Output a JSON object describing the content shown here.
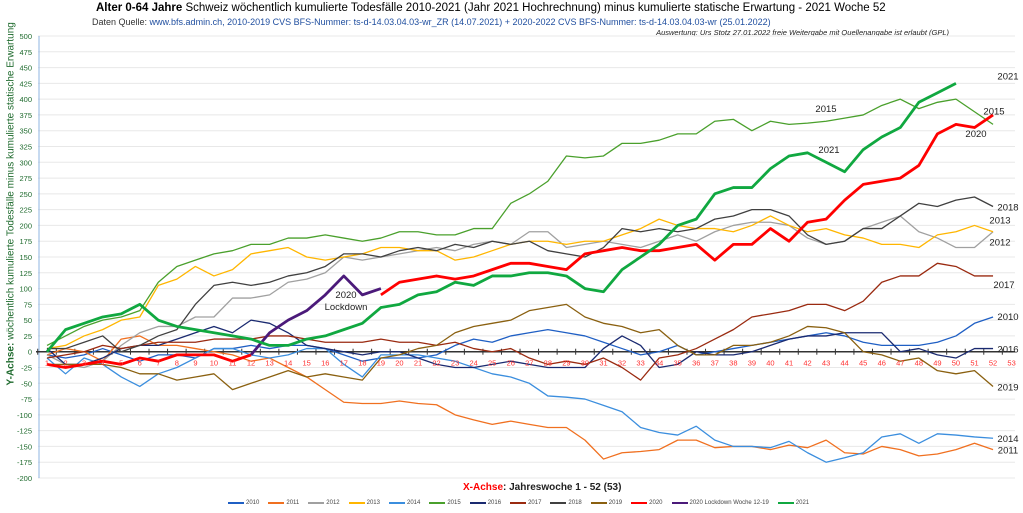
{
  "header": {
    "title_bold": "Alter 0-64 Jahre",
    "title_rest": " Schweiz wöchentlich kumulierte Todesfälle 2010-2021 (Jahr 2021 Hochrechnung) minus kumulierte statische Erwartung -  2021  Woche 52",
    "source_label": "Daten Quelle: ",
    "source_text": "www.bfs.admin.ch,  2010-2019 CVS BFS-Nummer: ts-d-14.03.04.03-wr_ZR (14.07.2021) + 2020-2022 CVS BFS-Nummer: ts-d-14.03.04.03-wr (25.01.2022)",
    "credit": "Auswertung: Urs Stotz 27.01.2022 freie Weitergabe mit Quellenangabe ist erlaubt (GPL)"
  },
  "chart_data": {
    "type": "line",
    "title": "Alter 0-64 Jahre Schweiz wöchentlich kumulierte Todesfälle 2010-2021 (Jahr 2021 Hochrechnung) minus kumulierte statische Erwartung -  2021  Woche 52",
    "xlabel_red": "X-Achse",
    "xlabel_rest": ": Jahreswoche  1 - 52 (53)",
    "ylabel_bold": "Y-Achse:",
    "ylabel_rest": " wöchentlich kumulierte Todesfälle minus kumulierte statische Erwartung",
    "ylim": [
      -200,
      500
    ],
    "yticks": [
      "500",
      "475",
      "450",
      "425",
      "400",
      "375",
      "350",
      "325",
      "300",
      "275",
      "250",
      "225",
      "200",
      "175",
      "150",
      "125",
      "100",
      "75",
      "50",
      "25",
      "0",
      "-25",
      "-50",
      "-75",
      "-100",
      "-125",
      "-150",
      "-175",
      "-200"
    ],
    "xticks": [
      "1",
      "2",
      "3",
      "4",
      "5",
      "6",
      "7",
      "8",
      "9",
      "10",
      "11",
      "12",
      "13",
      "14",
      "15",
      "16",
      "17",
      "18",
      "19",
      "20",
      "21",
      "22",
      "23",
      "24",
      "25",
      "26",
      "27",
      "28",
      "29",
      "30",
      "31",
      "32",
      "33",
      "34",
      "35",
      "36",
      "37",
      "38",
      "39",
      "40",
      "41",
      "42",
      "43",
      "44",
      "45",
      "46",
      "47",
      "48",
      "49",
      "50",
      "51",
      "52",
      "53"
    ],
    "grid": true,
    "legend_position": "bottom",
    "series": [
      {
        "name": "2010",
        "color": "#1f5fc4",
        "width": 1.3,
        "label": "2010",
        "values": [
          -5,
          -10,
          -5,
          5,
          -5,
          -15,
          -5,
          -5,
          -10,
          5,
          5,
          10,
          5,
          10,
          10,
          5,
          -5,
          -15,
          -10,
          -10,
          -10,
          -5,
          10,
          20,
          15,
          25,
          30,
          35,
          30,
          25,
          15,
          5,
          -5,
          0,
          10,
          -5,
          0,
          5,
          10,
          15,
          20,
          25,
          30,
          25,
          15,
          10,
          10,
          10,
          15,
          25,
          45,
          55,
          null
        ]
      },
      {
        "name": "2011",
        "color": "#f07020",
        "width": 1.3,
        "label": "2011",
        "values": [
          -5,
          5,
          0,
          -15,
          20,
          25,
          10,
          10,
          5,
          0,
          -5,
          -15,
          -10,
          -25,
          -40,
          -60,
          -80,
          -82,
          -82,
          -78,
          -82,
          -84,
          -100,
          -108,
          -115,
          -110,
          -115,
          -120,
          -120,
          -140,
          -170,
          -160,
          -158,
          -155,
          -140,
          -140,
          -152,
          -150,
          -150,
          -155,
          -148,
          -152,
          -140,
          -160,
          -162,
          -150,
          -155,
          -165,
          -162,
          -155,
          -145,
          -155,
          null
        ]
      },
      {
        "name": "2012",
        "color": "#a0a0a0",
        "width": 1.3,
        "label": "2012",
        "values": [
          -5,
          -20,
          -25,
          -15,
          10,
          30,
          40,
          40,
          55,
          55,
          85,
          85,
          90,
          110,
          115,
          125,
          150,
          145,
          150,
          155,
          160,
          165,
          160,
          170,
          175,
          170,
          190,
          190,
          165,
          170,
          175,
          170,
          165,
          175,
          185,
          175,
          190,
          200,
          205,
          205,
          200,
          180,
          170,
          175,
          195,
          205,
          215,
          190,
          180,
          165,
          165,
          190,
          null
        ]
      },
      {
        "name": "2013",
        "color": "#ffb600",
        "width": 1.3,
        "label": "2013",
        "values": [
          5,
          10,
          25,
          35,
          50,
          55,
          105,
          115,
          135,
          120,
          130,
          155,
          160,
          165,
          150,
          145,
          150,
          155,
          165,
          165,
          160,
          160,
          145,
          150,
          160,
          170,
          175,
          175,
          170,
          175,
          175,
          185,
          195,
          210,
          200,
          195,
          195,
          190,
          200,
          215,
          200,
          190,
          195,
          185,
          180,
          170,
          170,
          165,
          185,
          190,
          200,
          190,
          null
        ]
      },
      {
        "name": "2014",
        "color": "#3b8ede",
        "width": 1.3,
        "label": "2014",
        "values": [
          -10,
          -35,
          -10,
          -20,
          -40,
          -55,
          -35,
          -25,
          -10,
          5,
          5,
          -5,
          -10,
          -5,
          5,
          5,
          -20,
          -40,
          -5,
          -5,
          -5,
          -10,
          -15,
          -25,
          -35,
          -40,
          -50,
          -70,
          -72,
          -75,
          -85,
          -95,
          -120,
          -128,
          -132,
          -118,
          -140,
          -150,
          -150,
          -152,
          -142,
          -160,
          -175,
          -168,
          -160,
          -135,
          -130,
          -145,
          -130,
          -132,
          -135,
          -137,
          null
        ]
      },
      {
        "name": "2015",
        "color": "#4aa02c",
        "width": 1.3,
        "label": "2015",
        "values": [
          10,
          25,
          40,
          50,
          55,
          65,
          110,
          135,
          145,
          155,
          160,
          170,
          170,
          180,
          180,
          185,
          180,
          175,
          180,
          190,
          190,
          185,
          185,
          195,
          195,
          235,
          250,
          270,
          310,
          307,
          310,
          330,
          330,
          335,
          345,
          345,
          365,
          368,
          350,
          365,
          360,
          362,
          365,
          370,
          375,
          390,
          400,
          385,
          395,
          400,
          380,
          360,
          null
        ]
      },
      {
        "name": "2016",
        "color": "#1a2a70",
        "width": 1.3,
        "label": "2016",
        "values": [
          5,
          -20,
          -20,
          -10,
          5,
          10,
          10,
          20,
          30,
          40,
          30,
          50,
          45,
          30,
          10,
          5,
          0,
          -5,
          0,
          0,
          -10,
          -20,
          -25,
          -25,
          -20,
          -15,
          -20,
          -25,
          -25,
          -25,
          5,
          25,
          10,
          -25,
          -20,
          0,
          -5,
          -5,
          0,
          10,
          20,
          25,
          25,
          30,
          30,
          30,
          0,
          5,
          -5,
          -10,
          5,
          5,
          null
        ]
      },
      {
        "name": "2017",
        "color": "#9a2a10",
        "width": 1.3,
        "label": "2017",
        "values": [
          -10,
          -5,
          0,
          10,
          5,
          10,
          15,
          15,
          15,
          20,
          20,
          20,
          25,
          25,
          20,
          15,
          15,
          15,
          20,
          15,
          15,
          10,
          15,
          5,
          0,
          5,
          -10,
          -20,
          -15,
          -20,
          -10,
          -25,
          -45,
          -10,
          -5,
          5,
          20,
          35,
          55,
          60,
          65,
          75,
          75,
          65,
          80,
          110,
          120,
          120,
          140,
          135,
          120,
          120,
          null
        ]
      },
      {
        "name": "2018",
        "color": "#404040",
        "width": 1.3,
        "label": "2018",
        "values": [
          5,
          5,
          15,
          25,
          0,
          10,
          25,
          35,
          75,
          105,
          110,
          105,
          110,
          120,
          125,
          135,
          155,
          155,
          150,
          160,
          165,
          160,
          170,
          165,
          175,
          170,
          175,
          160,
          155,
          150,
          165,
          195,
          190,
          195,
          190,
          195,
          210,
          215,
          225,
          225,
          215,
          185,
          170,
          175,
          195,
          195,
          215,
          235,
          230,
          240,
          245,
          230,
          null
        ]
      },
      {
        "name": "2019",
        "color": "#8a6010",
        "width": 1.3,
        "label": "2019",
        "values": [
          -20,
          -20,
          -20,
          -20,
          -25,
          -35,
          -35,
          -45,
          -40,
          -35,
          -60,
          -50,
          -40,
          -30,
          -40,
          -35,
          -40,
          -45,
          -10,
          -5,
          5,
          10,
          30,
          40,
          45,
          50,
          65,
          70,
          75,
          55,
          45,
          40,
          30,
          35,
          10,
          -5,
          -5,
          10,
          10,
          15,
          25,
          40,
          38,
          30,
          0,
          -5,
          -15,
          -10,
          -30,
          -35,
          -30,
          -55,
          null
        ]
      },
      {
        "name": "2020",
        "color": "#ff0000",
        "width": 2.8,
        "label": "2020",
        "values": [
          -20,
          -25,
          -20,
          -15,
          -20,
          -10,
          -15,
          -5,
          -5,
          -5,
          -15,
          -5,
          null,
          null,
          null,
          null,
          null,
          null,
          90,
          110,
          115,
          120,
          115,
          120,
          130,
          140,
          140,
          135,
          130,
          155,
          160,
          165,
          160,
          160,
          165,
          170,
          145,
          170,
          170,
          195,
          175,
          205,
          210,
          240,
          265,
          270,
          275,
          295,
          345,
          360,
          355,
          375,
          null
        ]
      },
      {
        "name": "2020 Lockdown Woche 12-19",
        "color": "#4b1a7a",
        "width": 2.8,
        "label": "2020\nLockdown",
        "values": [
          null,
          null,
          null,
          null,
          null,
          null,
          null,
          null,
          null,
          null,
          null,
          -5,
          30,
          50,
          65,
          90,
          120,
          90,
          100,
          null,
          null,
          null,
          null,
          null,
          null,
          null,
          null,
          null,
          null,
          null,
          null,
          null,
          null,
          null,
          null,
          null,
          null,
          null,
          null,
          null,
          null,
          null,
          null,
          null,
          null,
          null,
          null,
          null,
          null,
          null,
          null,
          null,
          null
        ]
      },
      {
        "name": "2021",
        "color": "#10a840",
        "width": 2.8,
        "label": "2021",
        "values": [
          0,
          35,
          45,
          55,
          60,
          75,
          50,
          40,
          35,
          30,
          25,
          20,
          10,
          10,
          20,
          25,
          35,
          45,
          70,
          75,
          90,
          95,
          110,
          105,
          120,
          120,
          125,
          125,
          120,
          100,
          95,
          130,
          150,
          170,
          200,
          210,
          250,
          260,
          260,
          290,
          310,
          315,
          300,
          285,
          320,
          340,
          355,
          395,
          410,
          425,
          null,
          null,
          null
        ]
      }
    ]
  },
  "legend": {
    "items": [
      "2010",
      "2011",
      "2012",
      "2013",
      "2014",
      "2015",
      "2016",
      "2017",
      "2018",
      "2019",
      "2020",
      "2020 Lockdown Woche 12-19",
      "2021"
    ]
  }
}
